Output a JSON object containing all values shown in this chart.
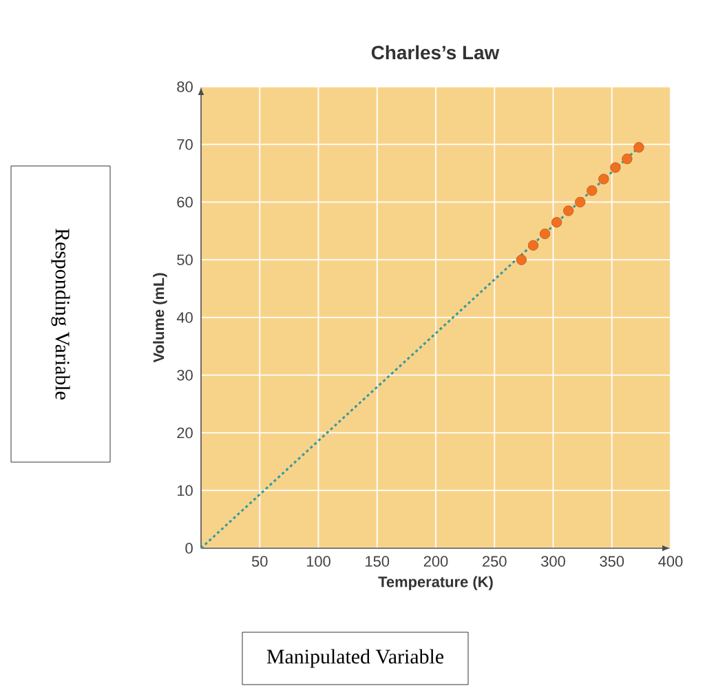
{
  "chart_data": {
    "type": "scatter",
    "title": "Charles’s Law",
    "xlabel": "Temperature (K)",
    "ylabel": "Volume (mL)",
    "xlim": [
      0,
      400
    ],
    "ylim": [
      0,
      80
    ],
    "xticks": [
      50,
      100,
      150,
      200,
      250,
      300,
      350,
      400
    ],
    "yticks": [
      0,
      10,
      20,
      30,
      40,
      50,
      60,
      70,
      80
    ],
    "grid": true,
    "series": [
      {
        "type": "line",
        "color": "#3a9a9e",
        "line_style": "dotted",
        "marker": "none",
        "x": [
          0,
          373
        ],
        "values": [
          0,
          69.5
        ]
      },
      {
        "color": "#f07022",
        "marker": "circle",
        "x": [
          273,
          283,
          293,
          303,
          313,
          323,
          333,
          343,
          353,
          363,
          373
        ],
        "values": [
          50,
          52.5,
          54.5,
          56.5,
          58.5,
          60,
          62,
          64,
          66,
          67.5,
          69.5
        ]
      }
    ],
    "annotations": [
      "Responding Variable",
      "Manipulated Variable"
    ]
  }
}
